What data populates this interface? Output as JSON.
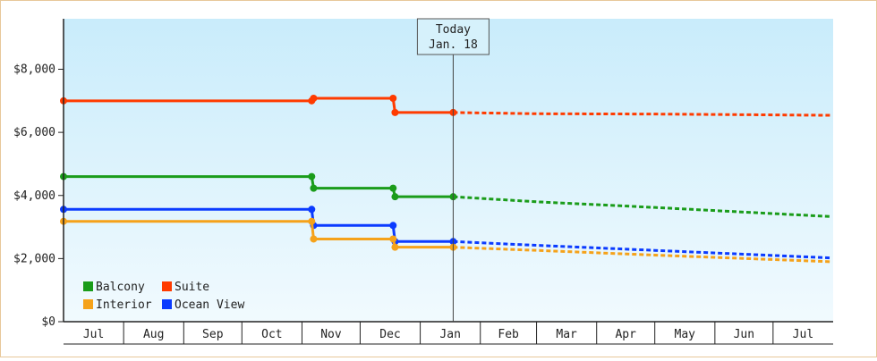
{
  "chart_data": {
    "type": "line",
    "title": "",
    "xlabel": "",
    "ylabel": "",
    "ylim": [
      0,
      9600
    ],
    "y_ticks": [
      {
        "value": 0,
        "label": "$0"
      },
      {
        "value": 2000,
        "label": "$2,000"
      },
      {
        "value": 4000,
        "label": "$4,000"
      },
      {
        "value": 6000,
        "label": "$6,000"
      },
      {
        "value": 8000,
        "label": "$8,000"
      }
    ],
    "months": [
      "Jul",
      "Aug",
      "Sep",
      "Oct",
      "Nov",
      "Dec",
      "Jan",
      "Feb",
      "Mar",
      "Apr",
      "May",
      "Jun",
      "Jul"
    ],
    "x_range": [
      "2023-07-01",
      "2024-07-31"
    ],
    "today": {
      "date": "2024-01-18",
      "line1": "Today",
      "line2": "Jan. 18"
    },
    "legend_position": "bottom-left",
    "series": [
      {
        "name": "Suite",
        "color": "#ff3b00",
        "history": [
          [
            "2023-07-01",
            7000
          ],
          [
            "2023-11-06",
            7000
          ],
          [
            "2023-11-07",
            7080
          ],
          [
            "2023-12-18",
            7080
          ],
          [
            "2023-12-19",
            6630
          ],
          [
            "2024-01-18",
            6630
          ]
        ],
        "forecast": [
          [
            "2024-01-18",
            6630
          ],
          [
            "2024-03-01",
            6590
          ],
          [
            "2024-05-01",
            6580
          ],
          [
            "2024-07-31",
            6540
          ]
        ]
      },
      {
        "name": "Balcony",
        "color": "#1a9c1a",
        "history": [
          [
            "2023-07-01",
            4600
          ],
          [
            "2023-11-06",
            4600
          ],
          [
            "2023-11-07",
            4230
          ],
          [
            "2023-12-18",
            4230
          ],
          [
            "2023-12-19",
            3960
          ],
          [
            "2024-01-18",
            3960
          ]
        ],
        "forecast": [
          [
            "2024-01-18",
            3960
          ],
          [
            "2024-03-01",
            3800
          ],
          [
            "2024-05-01",
            3620
          ],
          [
            "2024-07-31",
            3330
          ]
        ]
      },
      {
        "name": "Ocean View",
        "color": "#0b3bff",
        "history": [
          [
            "2023-07-01",
            3560
          ],
          [
            "2023-11-06",
            3560
          ],
          [
            "2023-11-07",
            3050
          ],
          [
            "2023-12-18",
            3050
          ],
          [
            "2023-12-19",
            2540
          ],
          [
            "2024-01-18",
            2540
          ]
        ],
        "forecast": [
          [
            "2024-01-18",
            2540
          ],
          [
            "2024-03-01",
            2420
          ],
          [
            "2024-05-01",
            2260
          ],
          [
            "2024-07-31",
            2020
          ]
        ]
      },
      {
        "name": "Interior",
        "color": "#f5a21a",
        "history": [
          [
            "2023-07-01",
            3180
          ],
          [
            "2023-11-06",
            3180
          ],
          [
            "2023-11-07",
            2620
          ],
          [
            "2023-12-18",
            2620
          ],
          [
            "2023-12-19",
            2360
          ],
          [
            "2024-01-18",
            2360
          ]
        ],
        "forecast": [
          [
            "2024-01-18",
            2360
          ],
          [
            "2024-03-01",
            2260
          ],
          [
            "2024-05-01",
            2110
          ],
          [
            "2024-07-31",
            1900
          ]
        ]
      }
    ],
    "legend": [
      "Balcony",
      "Suite",
      "Interior",
      "Ocean View"
    ],
    "colors": {
      "plot_top": "#c9ecfb",
      "plot_bottom": "#f1fafe",
      "axis": "#222222",
      "frame_border": "#e8c89a"
    }
  }
}
